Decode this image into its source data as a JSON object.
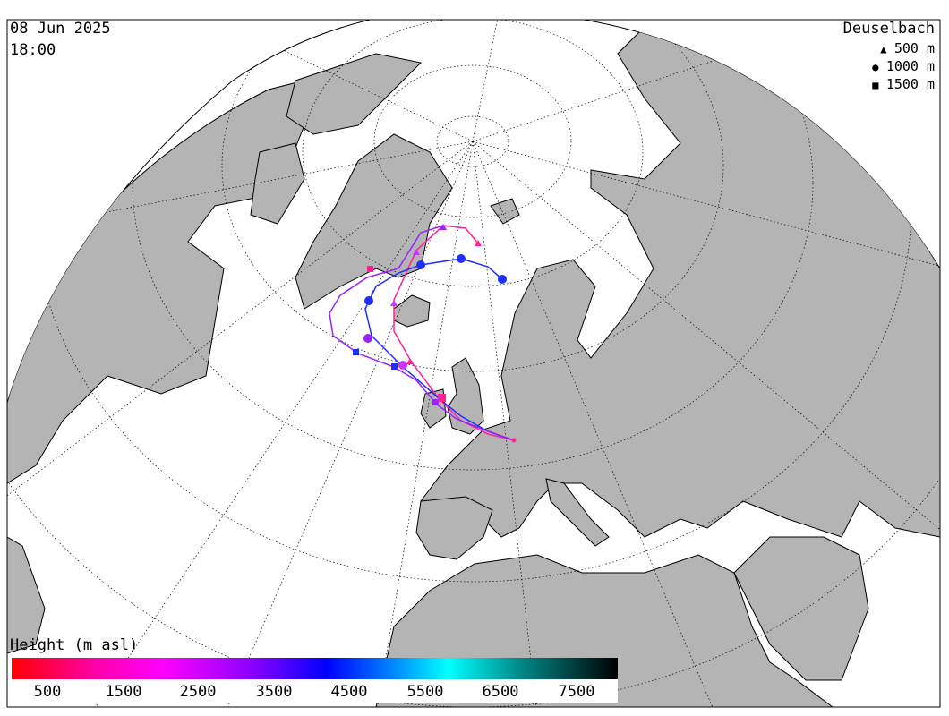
{
  "header": {
    "date": "08 Jun 2025",
    "time": "18:00",
    "station": "Deuselbach"
  },
  "legend": {
    "items": [
      {
        "symbol": "▲",
        "label": "500 m",
        "shape": "triangle"
      },
      {
        "symbol": "●",
        "label": "1000 m",
        "shape": "circle"
      },
      {
        "symbol": "■",
        "label": "1500 m",
        "shape": "square"
      }
    ]
  },
  "colorbar": {
    "title": "Height (m asl)",
    "ticks": [
      "500",
      "1500",
      "2500",
      "3500",
      "4500",
      "5500",
      "6500",
      "7500"
    ]
  },
  "colors": {
    "land": "#b4b4b4",
    "ocean": "#ffffff",
    "traj_500": "#ff2299",
    "traj_1000": "#1f2fff",
    "traj_1500": "#9a22ff"
  },
  "icons": {
    "legend_500": "triangle-marker-icon",
    "legend_1000": "circle-marker-icon",
    "legend_1500": "square-marker-icon"
  }
}
